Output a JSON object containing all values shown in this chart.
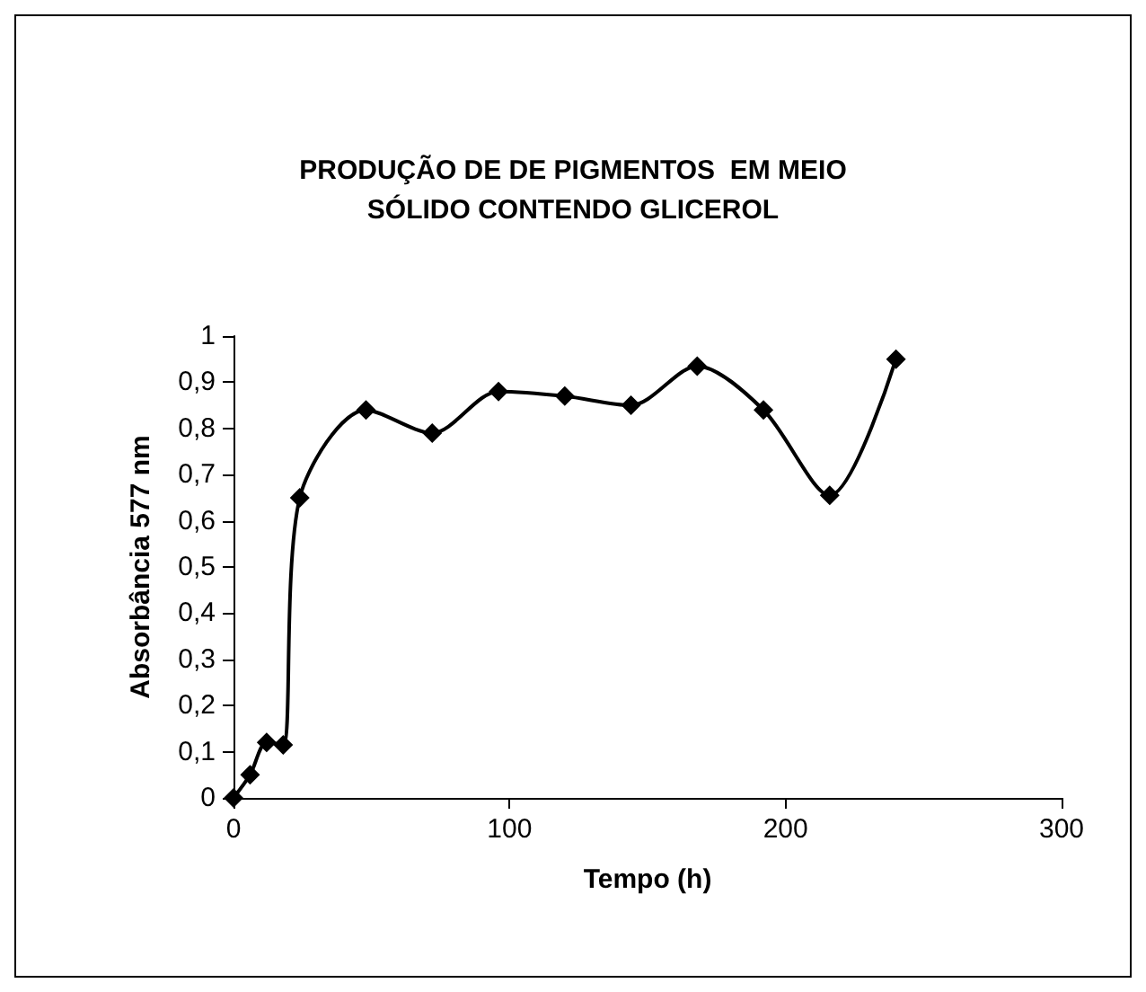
{
  "chart_data": {
    "type": "line",
    "title": "PRODUÇÃO DE DE PIGMENTOS  EM MEIO\nSÓLIDO CONTENDO GLICEROL",
    "xlabel": "Tempo (h)",
    "ylabel": "Absorbância 577 nm",
    "x": [
      0,
      6,
      12,
      18,
      24,
      48,
      72,
      96,
      120,
      144,
      168,
      192,
      216,
      240
    ],
    "series": [
      {
        "color": "#000000",
        "values": [
          0,
          0.05,
          0.12,
          0.115,
          0.65,
          0.84,
          0.79,
          0.88,
          0.87,
          0.85,
          0.935,
          0.84,
          0.655,
          0.95
        ]
      }
    ],
    "xlim": [
      0,
      300
    ],
    "xticks": [
      0,
      100,
      200,
      300
    ],
    "ylim": [
      0,
      1
    ],
    "yticks": [
      0,
      {
        "value": 0.1,
        "label": "0,1"
      },
      {
        "value": 0.2,
        "label": "0,2"
      },
      {
        "value": 0.3,
        "label": "0,3"
      },
      {
        "value": 0.4,
        "label": "0,4"
      },
      {
        "value": 0.5,
        "label": "0,5"
      },
      {
        "value": 0.6,
        "label": "0,6"
      },
      {
        "value": 0.7,
        "label": "0,7"
      },
      {
        "value": 0.8,
        "label": "0,8"
      },
      {
        "value": 0.9,
        "label": "0,9"
      },
      1
    ],
    "marker": "diamond",
    "line_style": "solid",
    "grid": false
  }
}
